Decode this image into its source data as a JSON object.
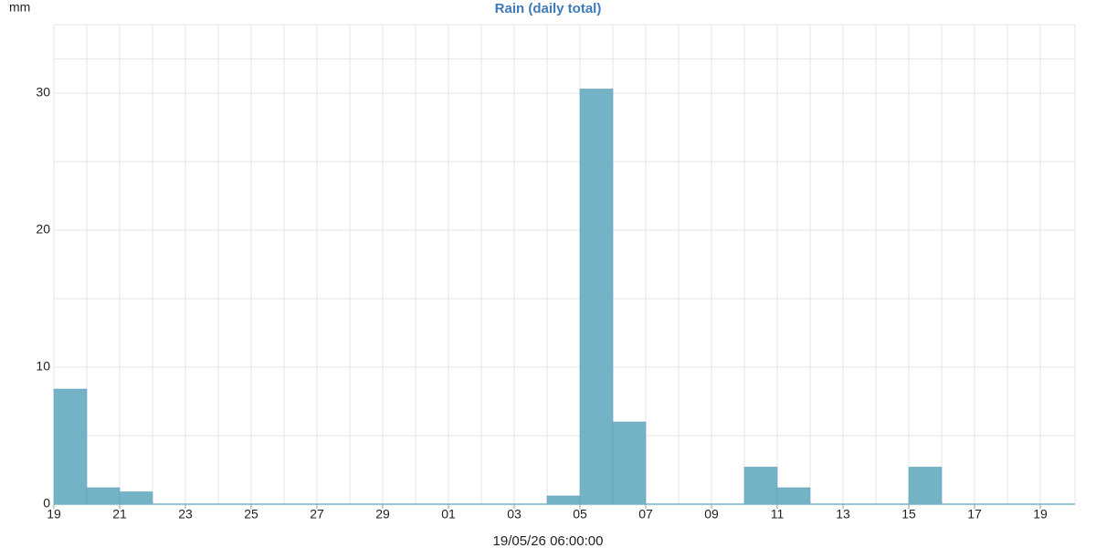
{
  "chart_data": {
    "type": "bar",
    "title": "Rain (daily total)",
    "y_unit": "mm",
    "x_label": "19/05/26 06:00:00",
    "categories": [
      "19",
      null,
      "21",
      null,
      "23",
      null,
      "25",
      null,
      "27",
      null,
      "29",
      null,
      "01",
      null,
      "03",
      null,
      "05",
      null,
      "07",
      null,
      "09",
      null,
      "11",
      null,
      "13",
      null,
      "15",
      null,
      "17",
      null,
      "19"
    ],
    "values": [
      8.4,
      1.2,
      0.9,
      0,
      0,
      0,
      0,
      0,
      0,
      0,
      0,
      0,
      0,
      0,
      0,
      0.6,
      30.3,
      6.0,
      0,
      0,
      0,
      2.7,
      1.2,
      0,
      0,
      0,
      2.7,
      0,
      0,
      0,
      0
    ],
    "color": "#74b3c5",
    "ylim": [
      0,
      35
    ],
    "yticks": [
      0,
      10,
      20,
      30
    ],
    "grid": true
  }
}
